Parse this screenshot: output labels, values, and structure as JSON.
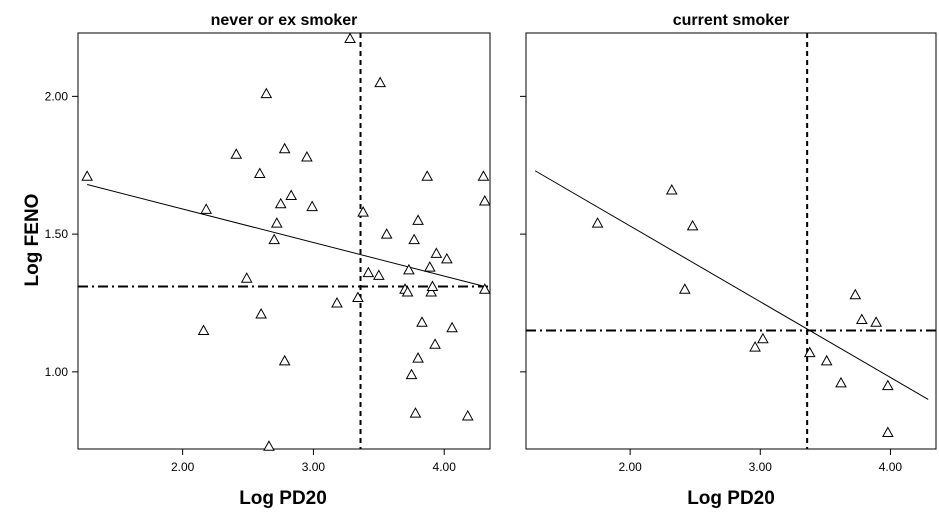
{
  "chart_data": {
    "type": "scatter",
    "xlabel": "Log PD20",
    "ylabel": "Log FENO",
    "xlim": [
      1.2,
      4.35
    ],
    "ylim": [
      0.72,
      2.23
    ],
    "x_ticks": [
      2.0,
      3.0,
      4.0
    ],
    "x_tick_labels": [
      "2.00",
      "3.00",
      "4.00"
    ],
    "y_ticks": [
      1.0,
      1.5,
      2.0
    ],
    "y_tick_labels": [
      "1.00",
      "1.50",
      "2.00"
    ],
    "marker": "open-triangle",
    "grid": false,
    "panels": [
      {
        "title": "never or ex smoker",
        "points": [
          {
            "x": 1.27,
            "y": 1.71
          },
          {
            "x": 2.16,
            "y": 1.15
          },
          {
            "x": 2.18,
            "y": 1.59
          },
          {
            "x": 2.41,
            "y": 1.79
          },
          {
            "x": 2.49,
            "y": 1.34
          },
          {
            "x": 2.59,
            "y": 1.72
          },
          {
            "x": 2.6,
            "y": 1.21
          },
          {
            "x": 2.64,
            "y": 2.01
          },
          {
            "x": 2.66,
            "y": 0.73
          },
          {
            "x": 2.7,
            "y": 1.48
          },
          {
            "x": 2.72,
            "y": 1.54
          },
          {
            "x": 2.75,
            "y": 1.61
          },
          {
            "x": 2.78,
            "y": 1.04
          },
          {
            "x": 2.78,
            "y": 1.81
          },
          {
            "x": 2.83,
            "y": 1.64
          },
          {
            "x": 2.95,
            "y": 1.78
          },
          {
            "x": 2.99,
            "y": 1.6
          },
          {
            "x": 3.18,
            "y": 1.25
          },
          {
            "x": 3.28,
            "y": 2.21
          },
          {
            "x": 3.34,
            "y": 1.27
          },
          {
            "x": 3.38,
            "y": 1.58
          },
          {
            "x": 3.42,
            "y": 1.36
          },
          {
            "x": 3.5,
            "y": 1.35
          },
          {
            "x": 3.51,
            "y": 2.05
          },
          {
            "x": 3.56,
            "y": 1.5
          },
          {
            "x": 3.7,
            "y": 1.3
          },
          {
            "x": 3.72,
            "y": 1.29
          },
          {
            "x": 3.73,
            "y": 1.37
          },
          {
            "x": 3.75,
            "y": 0.99
          },
          {
            "x": 3.77,
            "y": 1.48
          },
          {
            "x": 3.78,
            "y": 0.85
          },
          {
            "x": 3.8,
            "y": 1.55
          },
          {
            "x": 3.8,
            "y": 1.05
          },
          {
            "x": 3.83,
            "y": 1.18
          },
          {
            "x": 3.87,
            "y": 1.71
          },
          {
            "x": 3.89,
            "y": 1.38
          },
          {
            "x": 3.9,
            "y": 1.29
          },
          {
            "x": 3.91,
            "y": 1.31
          },
          {
            "x": 3.93,
            "y": 1.1
          },
          {
            "x": 3.94,
            "y": 1.43
          },
          {
            "x": 4.02,
            "y": 1.41
          },
          {
            "x": 4.06,
            "y": 1.16
          },
          {
            "x": 4.18,
            "y": 0.84
          },
          {
            "x": 4.3,
            "y": 1.71
          },
          {
            "x": 4.31,
            "y": 1.62
          },
          {
            "x": 4.31,
            "y": 1.3
          }
        ],
        "fit_line": [
          {
            "x": 1.27,
            "y": 1.68
          },
          {
            "x": 4.31,
            "y": 1.31
          }
        ],
        "ref_x": 3.36,
        "ref_y": 1.31
      },
      {
        "title": "current smoker",
        "points": [
          {
            "x": 1.75,
            "y": 1.54
          },
          {
            "x": 2.32,
            "y": 1.66
          },
          {
            "x": 2.42,
            "y": 1.3
          },
          {
            "x": 2.48,
            "y": 1.53
          },
          {
            "x": 2.96,
            "y": 1.09
          },
          {
            "x": 3.02,
            "y": 1.12
          },
          {
            "x": 3.38,
            "y": 1.07
          },
          {
            "x": 3.51,
            "y": 1.04
          },
          {
            "x": 3.62,
            "y": 0.96
          },
          {
            "x": 3.73,
            "y": 1.28
          },
          {
            "x": 3.78,
            "y": 1.19
          },
          {
            "x": 3.89,
            "y": 1.18
          },
          {
            "x": 3.98,
            "y": 0.95
          },
          {
            "x": 3.98,
            "y": 0.78
          }
        ],
        "fit_line": [
          {
            "x": 1.27,
            "y": 1.73
          },
          {
            "x": 4.29,
            "y": 0.9
          }
        ],
        "ref_x": 3.36,
        "ref_y": 1.15
      }
    ]
  }
}
